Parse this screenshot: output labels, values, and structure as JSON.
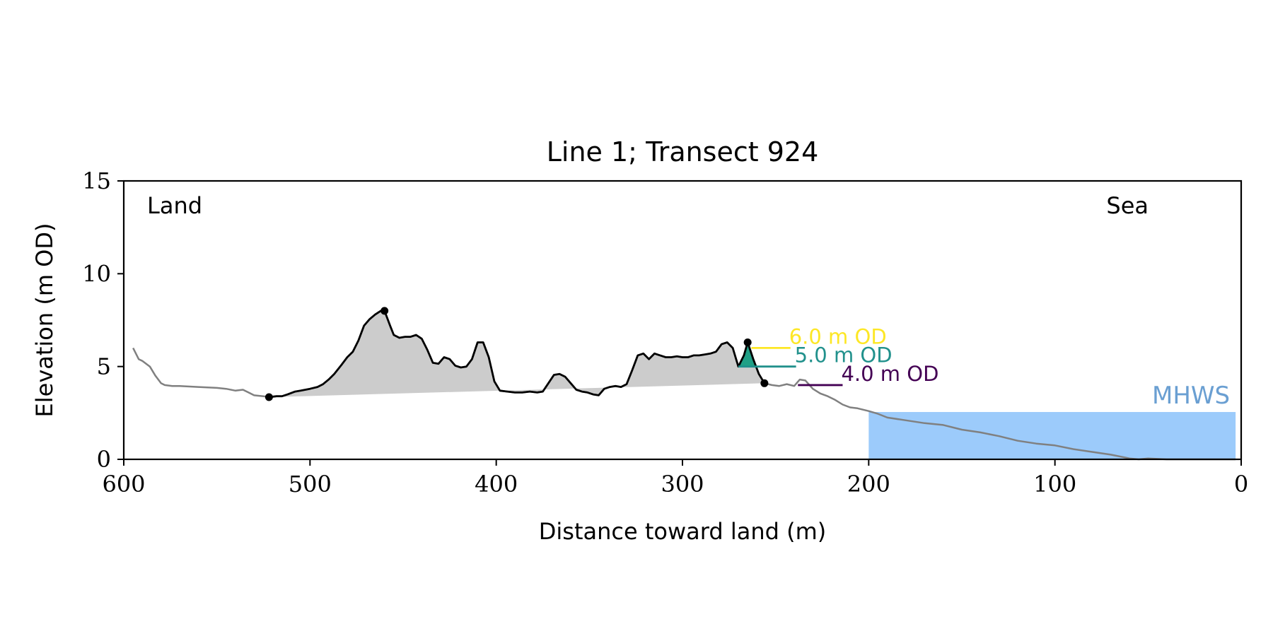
{
  "chart_data": {
    "type": "line",
    "title": "Line 1; Transect 924",
    "xlabel": "Distance toward land (m)",
    "ylabel": "Elevation (m OD)",
    "xlim": [
      600,
      0
    ],
    "ylim": [
      0,
      15
    ],
    "xticks": [
      600,
      500,
      400,
      300,
      200,
      100,
      0
    ],
    "yticks": [
      0,
      5,
      10,
      15
    ],
    "grid": false,
    "annotations": {
      "left": "Land",
      "right": "Sea"
    },
    "colors": {
      "profile": "#808080",
      "dune": "#000000",
      "dune_fill": "#cccccc",
      "level_fill": "#21a086",
      "mhws_fill": "#9ccbfb",
      "mhws_text": "#6a9fd2"
    },
    "profile": {
      "x": [
        595,
        592,
        590,
        586,
        583,
        580,
        578,
        574,
        570,
        560,
        550,
        545,
        540,
        536,
        533,
        530,
        525,
        522,
        518,
        515,
        512,
        508,
        505,
        500,
        496,
        493,
        490,
        487,
        483,
        480,
        477,
        474,
        471,
        468,
        465,
        462,
        460,
        457,
        455,
        452,
        449,
        446,
        443,
        440,
        437,
        434,
        431,
        428,
        425,
        422,
        419,
        416,
        413,
        410,
        407,
        404,
        401,
        398,
        394,
        390,
        386,
        382,
        378,
        375,
        372,
        369,
        366,
        363,
        360,
        357,
        354,
        351,
        348,
        345,
        342,
        339,
        336,
        333,
        330,
        327,
        324,
        321,
        318,
        315,
        312,
        309,
        306,
        303,
        300,
        297,
        294,
        291,
        288,
        285,
        282,
        279,
        276,
        273,
        270,
        267,
        265,
        262,
        259,
        256,
        252,
        248,
        244,
        240,
        237,
        234,
        230,
        226,
        222,
        218,
        214,
        210,
        206,
        200,
        195,
        190,
        180,
        170,
        160,
        150,
        140,
        130,
        120,
        110,
        100,
        90,
        80,
        70,
        60,
        55,
        50,
        40,
        30,
        20,
        10,
        3
      ],
      "y": [
        6.0,
        5.4,
        5.3,
        5.0,
        4.5,
        4.1,
        4.0,
        3.95,
        3.95,
        3.9,
        3.85,
        3.8,
        3.7,
        3.75,
        3.6,
        3.45,
        3.4,
        3.35,
        3.4,
        3.4,
        3.5,
        3.65,
        3.7,
        3.8,
        3.9,
        4.05,
        4.3,
        4.6,
        5.1,
        5.5,
        5.8,
        6.4,
        7.2,
        7.55,
        7.8,
        8.0,
        8.0,
        7.2,
        6.7,
        6.55,
        6.6,
        6.6,
        6.7,
        6.5,
        5.9,
        5.2,
        5.15,
        5.5,
        5.4,
        5.05,
        4.95,
        5.0,
        5.4,
        6.3,
        6.3,
        5.5,
        4.2,
        3.7,
        3.65,
        3.6,
        3.6,
        3.65,
        3.6,
        3.65,
        4.1,
        4.55,
        4.6,
        4.45,
        4.1,
        3.75,
        3.65,
        3.6,
        3.5,
        3.45,
        3.8,
        3.9,
        3.95,
        3.9,
        4.05,
        4.8,
        5.6,
        5.7,
        5.4,
        5.7,
        5.6,
        5.5,
        5.5,
        5.55,
        5.5,
        5.5,
        5.6,
        5.6,
        5.65,
        5.7,
        5.8,
        6.2,
        6.3,
        6.0,
        5.0,
        5.6,
        6.3,
        5.4,
        4.6,
        4.1,
        4.0,
        3.95,
        4.05,
        3.95,
        4.3,
        4.25,
        3.8,
        3.55,
        3.4,
        3.2,
        2.95,
        2.8,
        2.75,
        2.6,
        2.45,
        2.25,
        2.1,
        1.95,
        1.85,
        1.6,
        1.45,
        1.25,
        1.0,
        0.85,
        0.75,
        0.55,
        0.4,
        0.25,
        0.05,
        0.0,
        0.05,
        0.0,
        0.0,
        0.0,
        0.0,
        0.0
      ]
    },
    "dune": {
      "start": {
        "x": 522,
        "y": 3.35
      },
      "crest": {
        "x": 460,
        "y": 8.0
      },
      "front_crest": {
        "x": 265,
        "y": 6.3
      },
      "toe": {
        "x": 256,
        "y": 4.1
      }
    },
    "levels": [
      {
        "label": "6.0 m OD",
        "y": 6.0,
        "x_start": 263,
        "x_end": 242,
        "color": "#fde725"
      },
      {
        "label": "5.0 m OD",
        "y": 5.0,
        "x_start": 270,
        "x_end": 239,
        "color": "#21918c"
      },
      {
        "label": "4.0 m OD",
        "y": 4.0,
        "x_start": 238,
        "x_end": 214,
        "color": "#440154"
      }
    ],
    "mhws": {
      "label": "MHWS",
      "y": 2.55,
      "x_start": 200,
      "x_end": 3
    }
  }
}
